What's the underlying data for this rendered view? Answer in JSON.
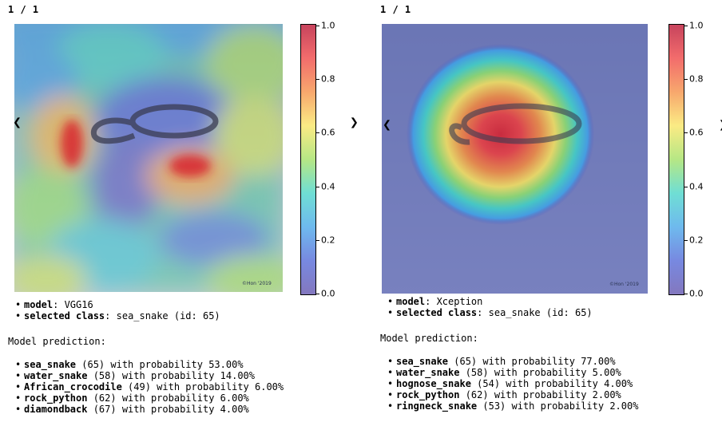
{
  "colorbar": {
    "ticks": [
      "1.0",
      "0.8",
      "0.6",
      "0.4",
      "0.2",
      "0.0"
    ],
    "stops": [
      {
        "v": 1.0,
        "color": "#b40426"
      },
      {
        "v": 0.875,
        "color": "#ee3b3b"
      },
      {
        "v": 0.75,
        "color": "#f58a3c"
      },
      {
        "v": 0.625,
        "color": "#f9e45b"
      },
      {
        "v": 0.5,
        "color": "#9ddf5c"
      },
      {
        "v": 0.375,
        "color": "#3fd3c6"
      },
      {
        "v": 0.25,
        "color": "#3ea2e8"
      },
      {
        "v": 0.125,
        "color": "#4a61d6"
      },
      {
        "v": 0.0,
        "color": "#5a4aa8"
      }
    ]
  },
  "left": {
    "counter": "1 / 1",
    "prev_glyph": "❮",
    "next_glyph": "❯",
    "heatmap_icon": "saliency-heatmap",
    "watermark": "©Hon '2019",
    "meta": [
      {
        "key": "model",
        "sep": ":",
        "value": " VGG16"
      },
      {
        "key": "selected class",
        "sep": ":",
        "value": " sea_snake (id: 65)"
      }
    ],
    "prediction_title": "Model prediction:",
    "predictions": [
      {
        "name": "sea_snake",
        "rest": " (65) with probability 53.00%"
      },
      {
        "name": "water_snake",
        "rest": " (58) with probability 14.00%"
      },
      {
        "name": "African_crocodile",
        "rest": " (49) with probability 6.00%"
      },
      {
        "name": "rock_python",
        "rest": " (62) with probability 6.00%"
      },
      {
        "name": "diamondback",
        "rest": " (67) with probability 4.00%"
      }
    ]
  },
  "right": {
    "counter": "1 / 1",
    "prev_glyph": "❮",
    "next_glyph": "❯",
    "heatmap_icon": "saliency-heatmap",
    "watermark": "©Hon '2019",
    "meta": [
      {
        "key": "model",
        "sep": ":",
        "value": " Xception"
      },
      {
        "key": "selected class",
        "sep": ":",
        "value": " sea_snake (id: 65)"
      }
    ],
    "prediction_title": "Model prediction:",
    "predictions": [
      {
        "name": "sea_snake",
        "rest": " (65) with probability 77.00%"
      },
      {
        "name": "water_snake",
        "rest": " (58) with probability 5.00%"
      },
      {
        "name": "hognose_snake",
        "rest": " (54) with probability 4.00%"
      },
      {
        "name": "rock_python",
        "rest": " (62) with probability 2.00%"
      },
      {
        "name": "ringneck_snake",
        "rest": " (53) with probability 2.00%"
      }
    ]
  }
}
